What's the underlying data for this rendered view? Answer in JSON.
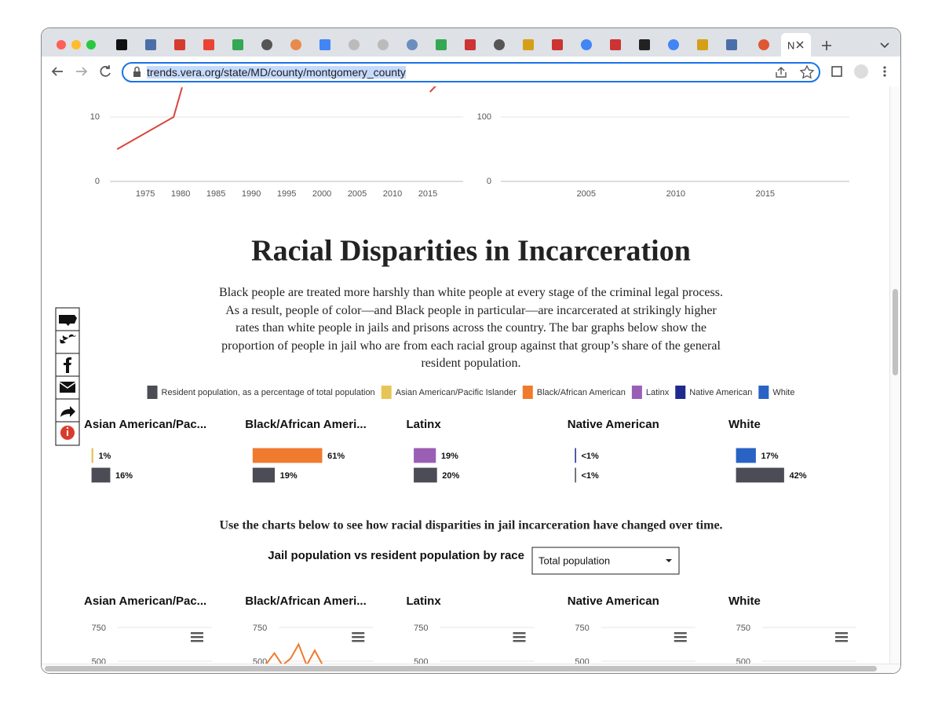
{
  "browser": {
    "active_tab": "N",
    "url": "trends.vera.org/state/MD/county/montgomery_county"
  },
  "top_charts": [
    {
      "type": "line",
      "xlim": [
        1967.2,
        2020
      ],
      "ylim": [
        0,
        15
      ],
      "yticks": [
        0,
        10
      ],
      "xticks": [
        1975,
        1980,
        1985,
        1990,
        1995,
        2000,
        2005,
        2010,
        2015
      ],
      "series": [
        {
          "color": "#d9453b",
          "x": [
            1971,
            1979,
            1980.2
          ],
          "values": [
            5,
            10,
            14.6
          ]
        },
        {
          "color": "#d9453b",
          "x": [
            2015.3,
            2016.1
          ],
          "values": [
            13.9,
            14.8
          ]
        }
      ]
    },
    {
      "type": "line",
      "xlim": [
        1999,
        2019.7
      ],
      "ylim": [
        0,
        150
      ],
      "yticks": [
        0,
        100
      ],
      "xticks": [
        2005,
        2010,
        2015
      ],
      "series": []
    }
  ],
  "section": {
    "title": "Racial Disparities in Incarceration",
    "text": "Black people are treated more harshly than white people at every stage of the criminal legal process. As a result, people of color—and Black people in particular—are incarcerated at strikingly higher rates than white people in jails and prisons across the country. The bar graphs below show the proportion of people in jail who are from each racial group against that group’s share of the general resident population."
  },
  "legend": [
    {
      "label": "Resident population, as a percentage of total population",
      "color": "#4b4c55"
    },
    {
      "label": "Asian American/Pacific Islander",
      "color": "#e8c456"
    },
    {
      "label": "Black/African American",
      "color": "#f07a2e"
    },
    {
      "label": "Latinx",
      "color": "#9a5fb5"
    },
    {
      "label": "Native American",
      "color": "#1e2a8e"
    },
    {
      "label": "White",
      "color": "#2963c4"
    }
  ],
  "bar_groups": {
    "xlim": [
      0,
      100
    ],
    "groups": [
      {
        "title": "Asian American/Pac...",
        "values": [
          1,
          16
        ],
        "value_labels": [
          "1%",
          "16%"
        ]
      },
      {
        "title": "Black/African Ameri...",
        "values": [
          61,
          19
        ],
        "value_labels": [
          "61%",
          "19%"
        ]
      },
      {
        "title": "Latinx",
        "values": [
          19,
          20
        ],
        "value_labels": [
          "19%",
          "20%"
        ]
      },
      {
        "title": "Native American",
        "values": [
          0.5,
          0.5
        ],
        "value_labels": [
          "<1%",
          "<1%"
        ]
      },
      {
        "title": "White",
        "values": [
          17,
          42
        ],
        "value_labels": [
          "17%",
          "42%"
        ]
      }
    ]
  },
  "time_note": "Use the charts below to see how racial disparities in jail incarceration have changed over time.",
  "selector": {
    "label": "Jail population vs resident population by race",
    "value": "Total population"
  },
  "bottom_charts": {
    "ylim": [
      500,
      750
    ],
    "yticks": [
      750,
      500
    ],
    "charts": [
      {
        "title": "Asian American/Pac...",
        "series": []
      },
      {
        "title": "Black/African Ameri...",
        "series": [
          {
            "color": "#f07a2e",
            "values": [
              480,
              560,
              470,
              520,
              625,
              470,
              580,
              470
            ]
          }
        ]
      },
      {
        "title": "Latinx",
        "series": []
      },
      {
        "title": "Native American",
        "series": []
      },
      {
        "title": "White",
        "series": []
      }
    ]
  }
}
